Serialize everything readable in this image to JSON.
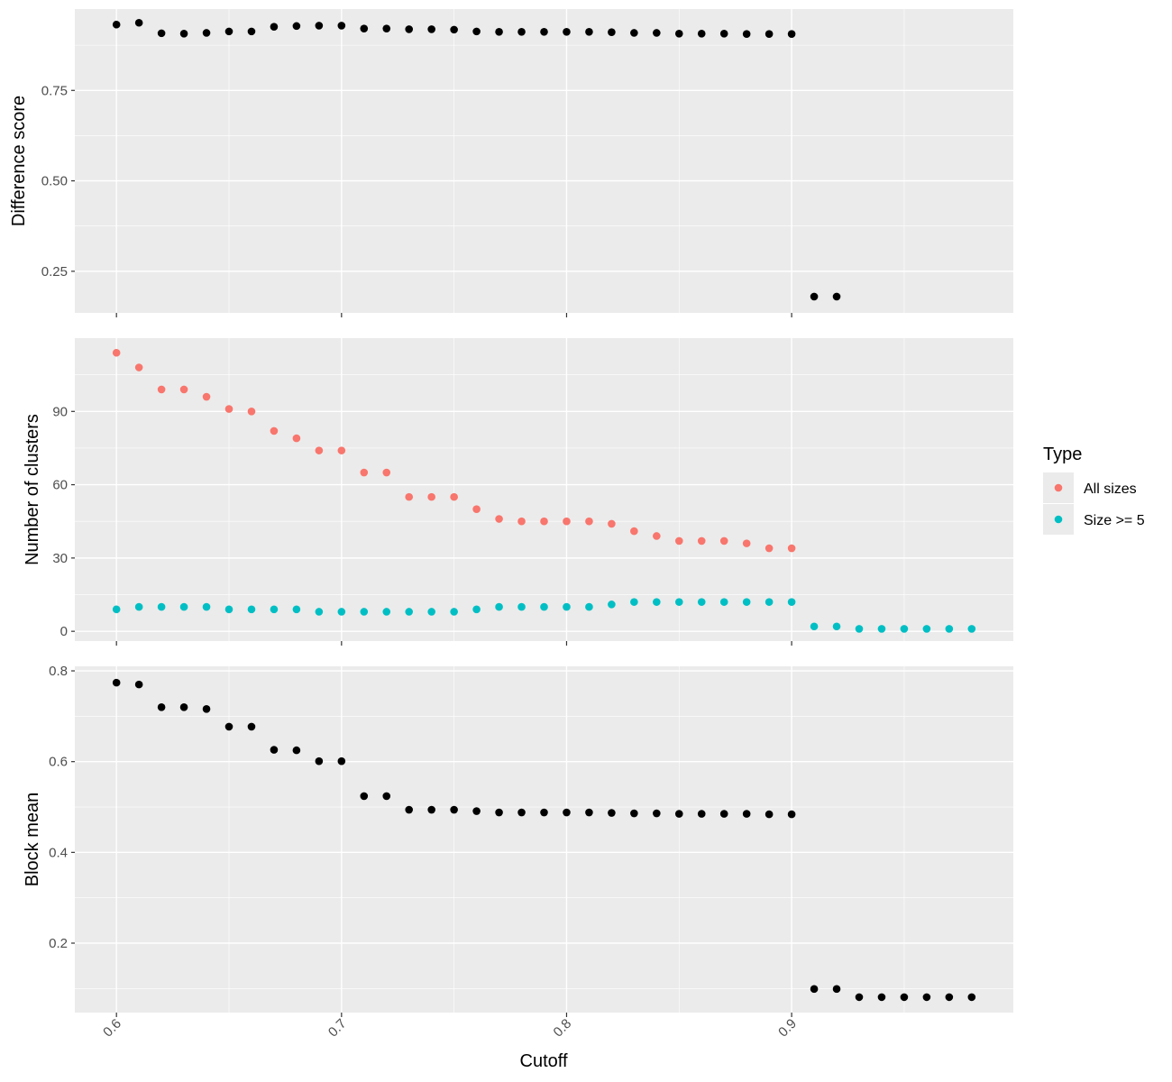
{
  "chart_data": {
    "type": "scatter",
    "x_label": "Cutoff",
    "x_ticks": [
      0.6,
      0.7,
      0.8,
      0.9
    ],
    "x_tick_labels": [
      "0.6",
      "0.7",
      "0.8",
      "0.9"
    ],
    "x_range": [
      0.5815,
      0.9985
    ],
    "legend": {
      "title": "Type",
      "entries": [
        {
          "label": "All sizes",
          "color": "#F8766D"
        },
        {
          "label": "Size >= 5",
          "color": "#00BFC4"
        }
      ]
    },
    "panels": [
      {
        "id": "difference",
        "y_label": "Difference score",
        "y_range": [
          0.135,
          0.975
        ],
        "y_ticks": [
          0.25,
          0.5,
          0.75
        ],
        "y_tick_labels": [
          "0.25",
          "0.50",
          "0.75"
        ],
        "series": [
          {
            "color": "#000000",
            "x": [
              0.6,
              0.61,
              0.62,
              0.63,
              0.64,
              0.65,
              0.66,
              0.67,
              0.68,
              0.69,
              0.7,
              0.71,
              0.72,
              0.73,
              0.74,
              0.75,
              0.76,
              0.77,
              0.78,
              0.79,
              0.8,
              0.81,
              0.82,
              0.83,
              0.84,
              0.85,
              0.86,
              0.87,
              0.88,
              0.89,
              0.9,
              0.91,
              0.92
            ],
            "y": [
              0.932,
              0.937,
              0.908,
              0.907,
              0.909,
              0.913,
              0.913,
              0.926,
              0.928,
              0.929,
              0.929,
              0.921,
              0.921,
              0.919,
              0.919,
              0.918,
              0.913,
              0.912,
              0.912,
              0.912,
              0.912,
              0.912,
              0.911,
              0.909,
              0.909,
              0.907,
              0.907,
              0.907,
              0.906,
              0.906,
              0.906,
              0.18,
              0.18
            ]
          }
        ]
      },
      {
        "id": "clusters",
        "y_label": "Number of clusters",
        "y_range": [
          -4,
          120
        ],
        "y_ticks": [
          0,
          30,
          60,
          90
        ],
        "y_tick_labels": [
          "0",
          "30",
          "60",
          "90"
        ],
        "series": [
          {
            "name": "All sizes",
            "color": "#F8766D",
            "x": [
              0.6,
              0.61,
              0.62,
              0.63,
              0.64,
              0.65,
              0.66,
              0.67,
              0.68,
              0.69,
              0.7,
              0.71,
              0.72,
              0.73,
              0.74,
              0.75,
              0.76,
              0.77,
              0.78,
              0.79,
              0.8,
              0.81,
              0.82,
              0.83,
              0.84,
              0.85,
              0.86,
              0.87,
              0.88,
              0.89,
              0.9
            ],
            "y": [
              114,
              108,
              99,
              99,
              96,
              91,
              90,
              82,
              79,
              74,
              74,
              65,
              65,
              55,
              55,
              55,
              50,
              46,
              45,
              45,
              45,
              45,
              44,
              41,
              39,
              37,
              37,
              37,
              36,
              34,
              34
            ]
          },
          {
            "name": "Size >= 5",
            "color": "#00BFC4",
            "x": [
              0.6,
              0.61,
              0.62,
              0.63,
              0.64,
              0.65,
              0.66,
              0.67,
              0.68,
              0.69,
              0.7,
              0.71,
              0.72,
              0.73,
              0.74,
              0.75,
              0.76,
              0.77,
              0.78,
              0.79,
              0.8,
              0.81,
              0.82,
              0.83,
              0.84,
              0.85,
              0.86,
              0.87,
              0.88,
              0.89,
              0.9,
              0.91,
              0.92,
              0.93,
              0.94,
              0.95,
              0.96,
              0.97,
              0.98
            ],
            "y": [
              9,
              10,
              10,
              10,
              10,
              9,
              9,
              9,
              9,
              8,
              8,
              8,
              8,
              8,
              8,
              8,
              9,
              10,
              10,
              10,
              10,
              10,
              11,
              12,
              12,
              12,
              12,
              12,
              12,
              12,
              12,
              2,
              2,
              1,
              1,
              1,
              1,
              1,
              1
            ]
          }
        ]
      },
      {
        "id": "blockmean",
        "y_label": "Block mean",
        "y_range": [
          0.047,
          0.81
        ],
        "y_ticks": [
          0.2,
          0.4,
          0.6,
          0.8
        ],
        "y_tick_labels": [
          "0.2",
          "0.4",
          "0.6",
          "0.8"
        ],
        "series": [
          {
            "color": "#000000",
            "x": [
              0.6,
              0.61,
              0.62,
              0.63,
              0.64,
              0.65,
              0.66,
              0.67,
              0.68,
              0.69,
              0.7,
              0.71,
              0.72,
              0.73,
              0.74,
              0.75,
              0.76,
              0.77,
              0.78,
              0.79,
              0.8,
              0.81,
              0.82,
              0.83,
              0.84,
              0.85,
              0.86,
              0.87,
              0.88,
              0.89,
              0.9,
              0.91,
              0.92,
              0.93,
              0.94,
              0.95,
              0.96,
              0.97,
              0.98
            ],
            "y": [
              0.774,
              0.77,
              0.72,
              0.72,
              0.716,
              0.677,
              0.677,
              0.626,
              0.625,
              0.601,
              0.601,
              0.524,
              0.524,
              0.494,
              0.494,
              0.494,
              0.491,
              0.488,
              0.488,
              0.488,
              0.488,
              0.488,
              0.487,
              0.486,
              0.486,
              0.485,
              0.485,
              0.485,
              0.485,
              0.484,
              0.484,
              0.099,
              0.099,
              0.081,
              0.081,
              0.081,
              0.081,
              0.081,
              0.081
            ]
          }
        ]
      }
    ]
  }
}
